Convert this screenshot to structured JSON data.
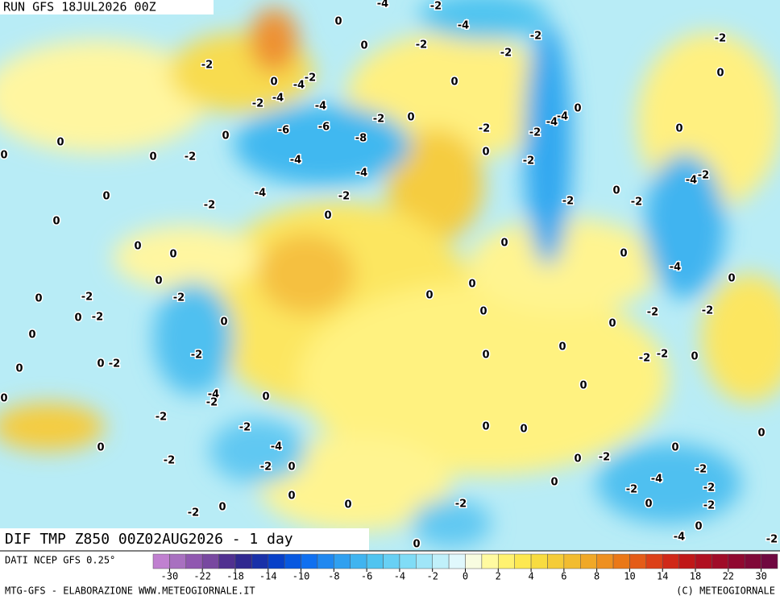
{
  "header": {
    "run": "RUN GFS 18JUL2026 00Z",
    "title": "DIF TMP Z850 00Z02AUG2026 - 1 day"
  },
  "footer": {
    "source": "DATI NCEP GFS 0.25°",
    "credit_left": "MTG-GFS - ELABORAZIONE WWW.METEOGIORNALE.IT",
    "credit_right": "(C) METEOGIORNALE"
  },
  "legend": {
    "colors": [
      "#c080d0",
      "#a870c0",
      "#9058b0",
      "#7848a0",
      "#503090",
      "#302890",
      "#1830a8",
      "#0840c8",
      "#0858e0",
      "#1070f0",
      "#2088f0",
      "#30a0f0",
      "#40b4f0",
      "#50c4f0",
      "#68d0f4",
      "#80dcf6",
      "#a0e6f8",
      "#c0f0fa",
      "#e0f8fc",
      "#f8fce0",
      "#fffaa0",
      "#fff270",
      "#fde850",
      "#f8dc40",
      "#f5cc38",
      "#f2bc30",
      "#f0a828",
      "#ee9020",
      "#ea7818",
      "#e45c18",
      "#dc4018",
      "#d02818",
      "#c01818",
      "#b01020",
      "#a00c28",
      "#900830",
      "#800838",
      "#700840"
    ],
    "ticks": [
      -30,
      -22,
      -18,
      -14,
      -10,
      -8,
      -6,
      -4,
      -2,
      0,
      2,
      4,
      6,
      8,
      10,
      14,
      18,
      22,
      30
    ]
  },
  "map": {
    "contour_labels": [
      "-4",
      "-2",
      "-4",
      "0",
      "-2",
      "-2",
      "0",
      "-2",
      "-2",
      "-2",
      "-2",
      "0",
      "-4",
      "0",
      "0",
      "-2",
      "-4",
      "-4",
      "0",
      "-2",
      "0",
      "-4",
      "-4",
      "-6",
      "-6",
      "-8",
      "-2",
      "-2",
      "0",
      "0",
      "0",
      "0",
      "0",
      "-2",
      "-4",
      "0",
      "-2",
      "-4",
      "-2",
      "-4",
      "-4",
      "-2",
      "0",
      "0",
      "-2",
      "-2",
      "-2",
      "0",
      "0",
      "0",
      "0",
      "0",
      "0",
      "-4",
      "0",
      "0",
      "0",
      "0",
      "-2",
      "-2",
      "0",
      "0",
      "-2",
      "0",
      "0",
      "-2",
      "-2",
      "0",
      "0",
      "-2",
      "0",
      "0",
      "-2",
      "-2",
      "0",
      "0",
      "0",
      "-2",
      "0",
      "-4",
      "-2",
      "0",
      "0",
      "-2",
      "-2",
      "0",
      "0",
      "0",
      "0",
      "-4",
      "0",
      "-2",
      "-2",
      "0",
      "0",
      "-2",
      "-2",
      "-4",
      "0",
      "0",
      "-2",
      "-2",
      "0",
      "0",
      "-2",
      "-2",
      "0",
      "-2",
      "0",
      "-4",
      "-2",
      "0"
    ]
  }
}
